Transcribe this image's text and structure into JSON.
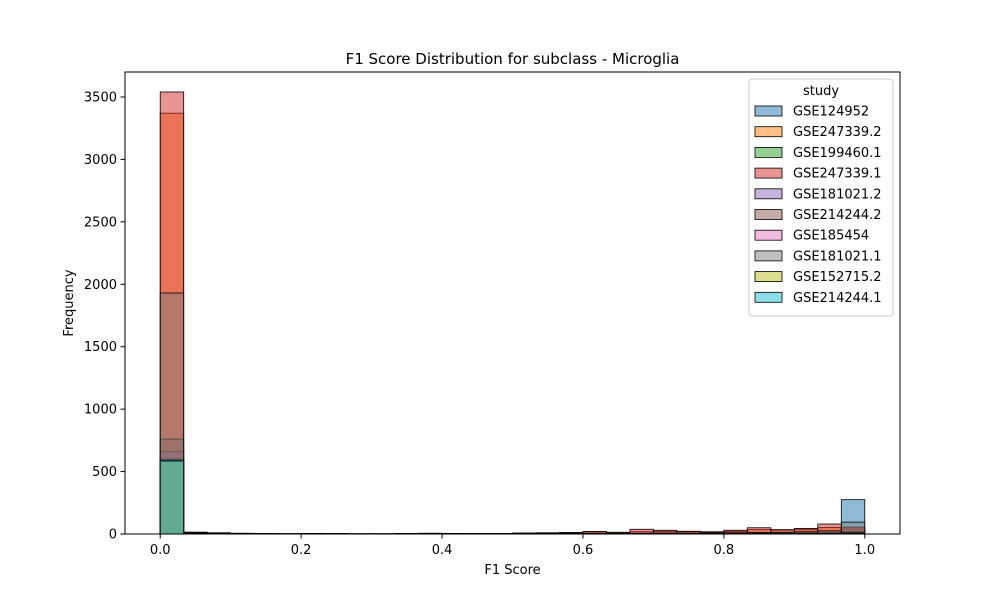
{
  "chart_data": {
    "type": "histogram",
    "title": "F1 Score Distribution for subclass - Microglia",
    "xlabel": "F1 Score",
    "ylabel": "Frequency",
    "xlim": [
      -0.05,
      1.05
    ],
    "ylim": [
      0,
      3700
    ],
    "xticks": [
      0.0,
      0.2,
      0.4,
      0.6,
      0.8,
      1.0
    ],
    "xtick_labels": [
      "0.0",
      "0.2",
      "0.4",
      "0.6",
      "0.8",
      "1.0"
    ],
    "yticks": [
      0,
      500,
      1000,
      1500,
      2000,
      2500,
      3000,
      3500
    ],
    "ytick_labels": [
      "0",
      "500",
      "1000",
      "1500",
      "2000",
      "2500",
      "3000",
      "3500"
    ],
    "bin_edges": [
      0.0,
      0.0333,
      0.0667,
      0.1,
      0.1333,
      0.1667,
      0.2,
      0.2333,
      0.2667,
      0.3,
      0.3333,
      0.3667,
      0.4,
      0.4333,
      0.4667,
      0.5,
      0.5333,
      0.5667,
      0.6,
      0.6333,
      0.6667,
      0.7,
      0.7333,
      0.7667,
      0.8,
      0.8333,
      0.8667,
      0.9,
      0.9333,
      0.9667,
      1.0
    ],
    "legend": {
      "title": "study",
      "placement": "top-right"
    },
    "series": [
      {
        "name": "GSE124952",
        "color": "#1f77b4",
        "counts": [
          0,
          5,
          3,
          2,
          1,
          1,
          2,
          1,
          1,
          0,
          1,
          2,
          1,
          1,
          1,
          2,
          3,
          4,
          3,
          2,
          5,
          6,
          5,
          7,
          8,
          10,
          12,
          15,
          18,
          275
        ]
      },
      {
        "name": "GSE247339.2",
        "color": "#ff7f0e",
        "counts": [
          3370,
          12,
          8,
          5,
          3,
          2,
          4,
          3,
          2,
          2,
          3,
          5,
          4,
          3,
          3,
          6,
          8,
          10,
          18,
          12,
          18,
          22,
          18,
          15,
          22,
          35,
          32,
          38,
          52,
          40
        ]
      },
      {
        "name": "GSE199460.1",
        "color": "#2ca02c",
        "counts": [
          600,
          2,
          1,
          1,
          0,
          0,
          1,
          0,
          0,
          0,
          0,
          1,
          0,
          0,
          0,
          1,
          1,
          1,
          1,
          1,
          1,
          1,
          2,
          2,
          2,
          2,
          3,
          3,
          3,
          5
        ]
      },
      {
        "name": "GSE247339.1",
        "color": "#d62728",
        "counts": [
          3540,
          15,
          10,
          6,
          4,
          3,
          5,
          4,
          3,
          3,
          4,
          6,
          5,
          4,
          4,
          8,
          10,
          12,
          20,
          14,
          38,
          30,
          22,
          18,
          30,
          50,
          35,
          45,
          80,
          55
        ]
      },
      {
        "name": "GSE181021.2",
        "color": "#9467bd",
        "counts": [
          660,
          3,
          2,
          1,
          1,
          0,
          1,
          0,
          0,
          0,
          1,
          1,
          0,
          0,
          1,
          1,
          1,
          2,
          2,
          1,
          2,
          2,
          3,
          3,
          3,
          4,
          4,
          5,
          6,
          12
        ]
      },
      {
        "name": "GSE214244.2",
        "color": "#8c564b",
        "counts": [
          760,
          4,
          2,
          1,
          1,
          1,
          1,
          1,
          0,
          0,
          1,
          1,
          1,
          0,
          1,
          1,
          2,
          2,
          2,
          2,
          3,
          3,
          3,
          4,
          5,
          6,
          6,
          8,
          10,
          20
        ]
      },
      {
        "name": "GSE185454",
        "color": "#e377c2",
        "counts": [
          600,
          2,
          1,
          1,
          0,
          0,
          1,
          0,
          0,
          0,
          0,
          0,
          1,
          0,
          0,
          1,
          1,
          1,
          1,
          1,
          1,
          2,
          2,
          2,
          2,
          3,
          3,
          3,
          4,
          8
        ]
      },
      {
        "name": "GSE181021.1",
        "color": "#7f7f7f",
        "counts": [
          1930,
          8,
          5,
          3,
          2,
          2,
          3,
          2,
          1,
          1,
          2,
          3,
          2,
          2,
          2,
          3,
          4,
          5,
          6,
          5,
          6,
          8,
          7,
          8,
          10,
          12,
          14,
          18,
          25,
          95
        ]
      },
      {
        "name": "GSE152715.2",
        "color": "#bcbd22",
        "counts": [
          580,
          2,
          1,
          1,
          0,
          0,
          1,
          0,
          0,
          0,
          0,
          0,
          0,
          0,
          0,
          1,
          1,
          1,
          1,
          1,
          1,
          1,
          1,
          2,
          2,
          2,
          2,
          3,
          3,
          6
        ]
      },
      {
        "name": "GSE214244.1",
        "color": "#17becf",
        "counts": [
          590,
          2,
          1,
          1,
          0,
          0,
          1,
          0,
          0,
          0,
          0,
          0,
          0,
          0,
          0,
          1,
          1,
          1,
          1,
          1,
          1,
          1,
          1,
          2,
          2,
          2,
          2,
          3,
          3,
          7
        ]
      }
    ]
  }
}
